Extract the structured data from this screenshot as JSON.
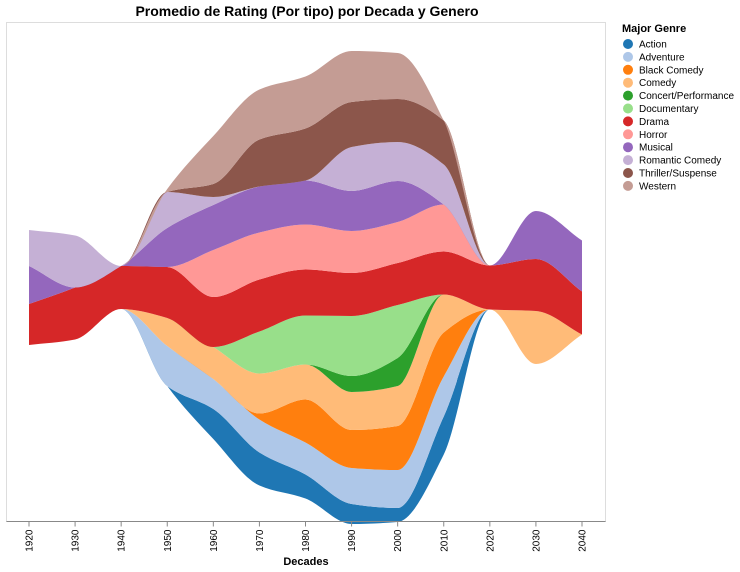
{
  "chart_data": {
    "type": "area",
    "title": "Promedio de Rating (Por tipo) por Decada y Genero",
    "xlabel": "Decades",
    "ylabel": "",
    "x": [
      1920,
      1930,
      1940,
      1950,
      1960,
      1970,
      1980,
      1990,
      2000,
      2010,
      2020,
      2030,
      2040
    ],
    "tick_labels": [
      "1920",
      "1930",
      "1940",
      "1950",
      "1960",
      "1970",
      "1980",
      "1990",
      "2000",
      "2010",
      "2020",
      "2030",
      "2040"
    ],
    "stack_offset": "center",
    "grid": false,
    "legend": {
      "title": "Major Genre",
      "position": "right"
    },
    "series": [
      {
        "name": "Action",
        "color": "#1f77b4",
        "values": [
          0,
          0,
          0,
          0,
          30,
          33,
          24,
          20,
          14,
          38,
          0,
          0,
          0
        ]
      },
      {
        "name": "Adventure",
        "color": "#aec7e8",
        "values": [
          0,
          0,
          0,
          40,
          30,
          33,
          32,
          36,
          38,
          40,
          0,
          0,
          0
        ]
      },
      {
        "name": "Black Comedy",
        "color": "#ff7f0e",
        "values": [
          0,
          0,
          0,
          0,
          0,
          6,
          43,
          38,
          44,
          44,
          0,
          0,
          0
        ]
      },
      {
        "name": "Comedy",
        "color": "#ffbb78",
        "values": [
          0,
          0,
          0,
          28,
          32,
          40,
          35,
          38,
          40,
          38,
          0,
          53,
          0
        ]
      },
      {
        "name": "Concert/Performance",
        "color": "#2ca02c",
        "values": [
          0,
          0,
          0,
          0,
          0,
          0,
          0,
          16,
          28,
          0,
          0,
          0,
          0
        ]
      },
      {
        "name": "Documentary",
        "color": "#98df8a",
        "values": [
          0,
          0,
          0,
          0,
          0,
          42,
          49,
          60,
          53,
          0,
          0,
          0,
          0
        ]
      },
      {
        "name": "Drama",
        "color": "#d62728",
        "values": [
          41,
          52,
          43,
          51,
          50,
          52,
          46,
          43,
          42,
          43,
          44,
          52,
          43
        ]
      },
      {
        "name": "Horror",
        "color": "#ff9896",
        "values": [
          0,
          0,
          0,
          0,
          47,
          47,
          45,
          42,
          41,
          47,
          0,
          0,
          0
        ]
      },
      {
        "name": "Musical",
        "color": "#9467bd",
        "values": [
          38,
          0,
          0,
          39,
          45,
          46,
          44,
          40,
          41,
          0,
          0,
          48,
          51
        ]
      },
      {
        "name": "Romantic Comedy",
        "color": "#c5b0d5",
        "values": [
          36,
          52,
          0,
          36,
          8,
          0,
          0,
          44,
          39,
          40,
          0,
          0,
          0
        ]
      },
      {
        "name": "Thriller/Suspense",
        "color": "#8c564b",
        "values": [
          0,
          0,
          0,
          0,
          13,
          47,
          52,
          45,
          43,
          44,
          0,
          0,
          0
        ]
      },
      {
        "name": "Western",
        "color": "#c49c94",
        "values": [
          0,
          0,
          0,
          3,
          48,
          50,
          52,
          51,
          46,
          0,
          0,
          0,
          0
        ]
      }
    ]
  }
}
